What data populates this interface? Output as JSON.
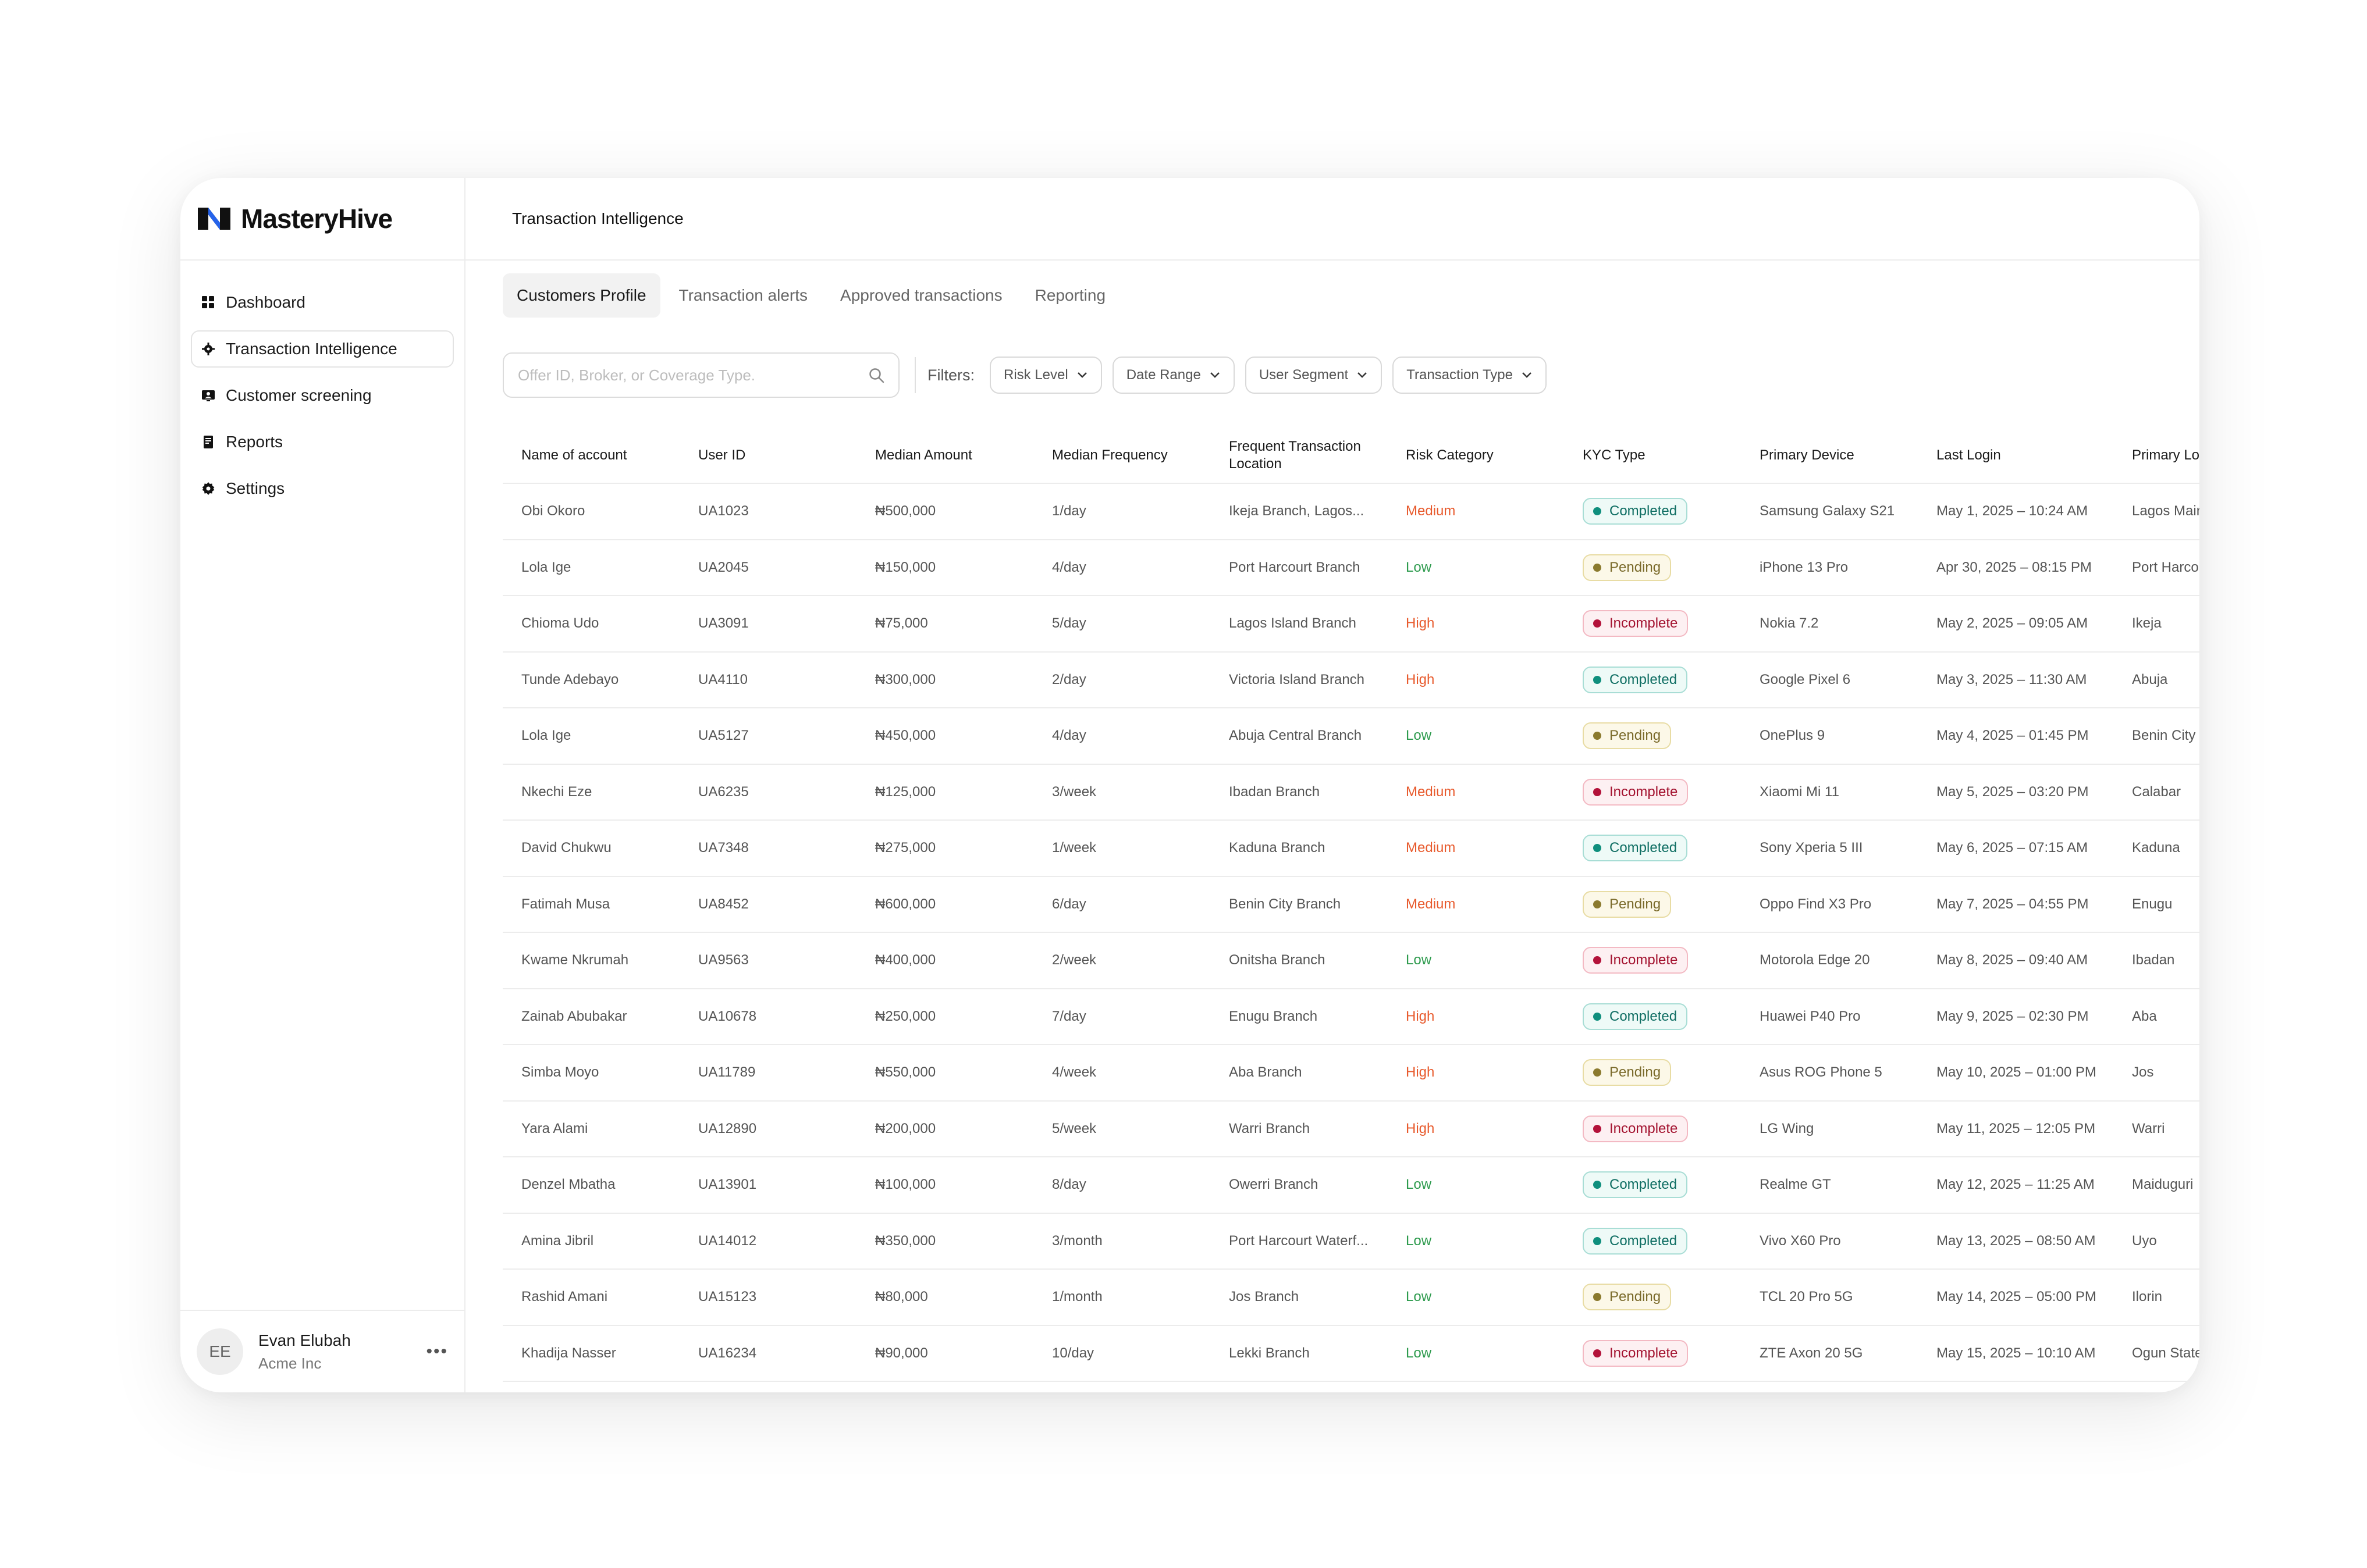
{
  "brand": {
    "name": "MasteryHive"
  },
  "sidebar": {
    "items": [
      {
        "label": "Dashboard",
        "icon": "grid-icon",
        "active": false
      },
      {
        "label": "Transaction Intelligence",
        "icon": "gear-icon",
        "active": true
      },
      {
        "label": "Customer screening",
        "icon": "id-card-icon",
        "active": false
      },
      {
        "label": "Reports",
        "icon": "report-icon",
        "active": false
      },
      {
        "label": "Settings",
        "icon": "settings-icon",
        "active": false
      }
    ],
    "user": {
      "initials": "EE",
      "name": "Evan Elubah",
      "org": "Acme Inc",
      "more": "•••"
    }
  },
  "header": {
    "title": "Transaction Intelligence"
  },
  "tabs": [
    {
      "label": "Customers Profile",
      "active": true
    },
    {
      "label": "Transaction alerts",
      "active": false
    },
    {
      "label": "Approved transactions",
      "active": false
    },
    {
      "label": "Reporting",
      "active": false
    }
  ],
  "search": {
    "placeholder": "Offer ID, Broker, or Coverage Type."
  },
  "filters": {
    "label": "Filters:",
    "buttons": [
      "Risk Level",
      "Date Range",
      "User Segment",
      "Transaction Type"
    ]
  },
  "table": {
    "columns": [
      "Name of account",
      "User ID",
      "Median Amount",
      "Median Frequency",
      "Frequent Transaction Location",
      "Risk Category",
      "KYC Type",
      "Primary Device",
      "Last Login",
      "Primary Lo"
    ],
    "rows": [
      [
        "Obi Okoro",
        "UA1023",
        "₦500,000",
        "1/day",
        "Ikeja Branch, Lagos...",
        "Medium",
        "Completed",
        "Samsung Galaxy S21",
        "May 1, 2025 – 10:24 AM",
        "Lagos Main"
      ],
      [
        "Lola Ige",
        "UA2045",
        "₦150,000",
        "4/day",
        "Port Harcourt Branch",
        "Low",
        "Pending",
        "iPhone 13 Pro",
        "Apr 30, 2025 – 08:15 PM",
        "Port Harcou"
      ],
      [
        "Chioma Udo",
        "UA3091",
        "₦75,000",
        "5/day",
        "Lagos Island Branch",
        "High",
        "Incomplete",
        "Nokia 7.2",
        "May 2, 2025 – 09:05 AM",
        "Ikeja"
      ],
      [
        "Tunde Adebayo",
        "UA4110",
        "₦300,000",
        "2/day",
        "Victoria Island Branch",
        "High",
        "Completed",
        "Google Pixel 6",
        "May 3, 2025 – 11:30 AM",
        "Abuja"
      ],
      [
        "Lola Ige",
        "UA5127",
        "₦450,000",
        "4/day",
        "Abuja Central Branch",
        "Low",
        "Pending",
        "OnePlus 9",
        "May 4, 2025 – 01:45 PM",
        "Benin City"
      ],
      [
        "Nkechi Eze",
        "UA6235",
        "₦125,000",
        "3/week",
        "Ibadan Branch",
        "Medium",
        "Incomplete",
        "Xiaomi Mi 11",
        "May 5, 2025 – 03:20 PM",
        "Calabar"
      ],
      [
        "David Chukwu",
        "UA7348",
        "₦275,000",
        "1/week",
        "Kaduna Branch",
        "Medium",
        "Completed",
        "Sony Xperia 5 III",
        "May 6, 2025 – 07:15 AM",
        "Kaduna"
      ],
      [
        "Fatimah Musa",
        "UA8452",
        "₦600,000",
        "6/day",
        "Benin City Branch",
        "Medium",
        "Pending",
        "Oppo Find X3 Pro",
        "May 7, 2025 – 04:55 PM",
        "Enugu"
      ],
      [
        "Kwame Nkrumah",
        "UA9563",
        "₦400,000",
        "2/week",
        "Onitsha Branch",
        "Low",
        "Incomplete",
        "Motorola Edge 20",
        "May 8, 2025 – 09:40 AM",
        "Ibadan"
      ],
      [
        "Zainab Abubakar",
        "UA10678",
        "₦250,000",
        "7/day",
        "Enugu Branch",
        "High",
        "Completed",
        "Huawei P40 Pro",
        "May 9, 2025 – 02:30 PM",
        "Aba"
      ],
      [
        "Simba Moyo",
        "UA11789",
        "₦550,000",
        "4/week",
        "Aba Branch",
        "High",
        "Pending",
        "Asus ROG Phone 5",
        "May 10, 2025 – 01:00 PM",
        "Jos"
      ],
      [
        "Yara Alami",
        "UA12890",
        "₦200,000",
        "5/week",
        "Warri Branch",
        "High",
        "Incomplete",
        "LG Wing",
        "May 11, 2025 – 12:05 PM",
        "Warri"
      ],
      [
        "Denzel Mbatha",
        "UA13901",
        "₦100,000",
        "8/day",
        "Owerri Branch",
        "Low",
        "Completed",
        "Realme GT",
        "May 12, 2025 – 11:25 AM",
        "Maiduguri"
      ],
      [
        "Amina Jibril",
        "UA14012",
        "₦350,000",
        "3/month",
        "Port Harcourt Waterf...",
        "Low",
        "Completed",
        "Vivo X60 Pro",
        "May 13, 2025 – 08:50 AM",
        "Uyo"
      ],
      [
        "Rashid Amani",
        "UA15123",
        "₦80,000",
        "1/month",
        "Jos Branch",
        "Low",
        "Pending",
        "TCL 20 Pro 5G",
        "May 14, 2025 – 05:00 PM",
        "Ilorin"
      ],
      [
        "Khadija Nasser",
        "UA16234",
        "₦90,000",
        "10/day",
        "Lekki Branch",
        "Low",
        "Incomplete",
        "ZTE Axon 20 5G",
        "May 15, 2025 – 10:10 AM",
        "Ogun State"
      ]
    ]
  },
  "colors": {
    "risk_high": "#e85b2e",
    "risk_medium": "#e85b2e",
    "risk_low": "#2e9b4e",
    "brand_blue": "#2563eb"
  }
}
